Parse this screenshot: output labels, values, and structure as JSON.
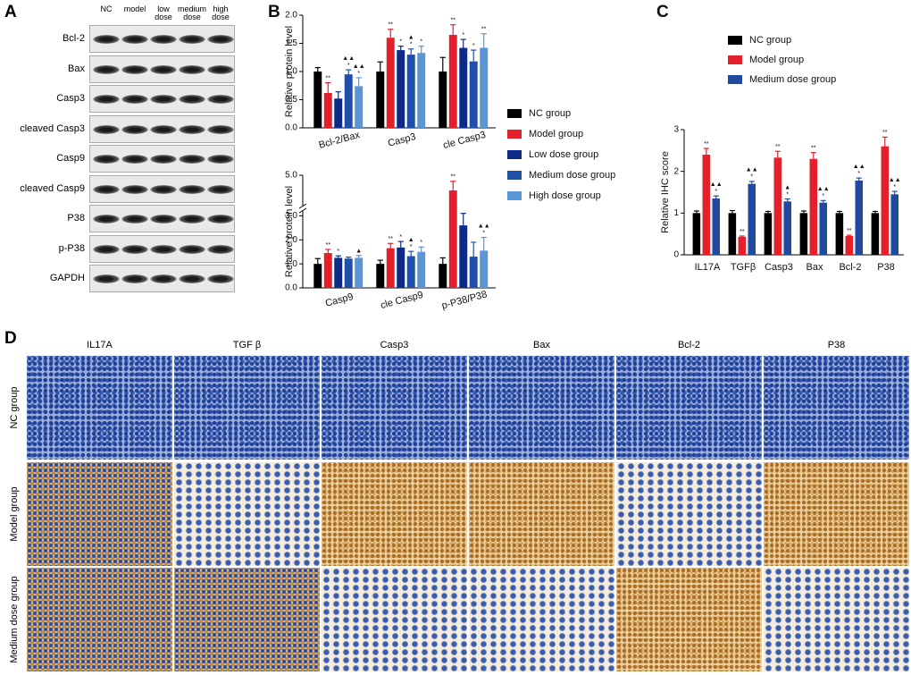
{
  "panel_a": {
    "label": "A",
    "lanes": [
      "NC",
      "model",
      "low dose",
      "medium dose",
      "high dose"
    ],
    "proteins": [
      "Bcl-2",
      "Bax",
      "Casp3",
      "cleaved Casp3",
      "Casp9",
      "cleaved Casp9",
      "P38",
      "p-P38",
      "GAPDH"
    ]
  },
  "chart_data": [
    {
      "type": "bar",
      "panel": "B",
      "ylabel": "Relative protein level",
      "categories": [
        "Bcl-2/Bax",
        "Casp3",
        "cle Casp3"
      ],
      "ylim": [
        0,
        2
      ],
      "yticks": [
        {
          "value": 0,
          "label": "0.0"
        },
        0.5,
        {
          "value": 1,
          "label": "1.0"
        },
        1.5,
        {
          "value": 2,
          "label": "2.0"
        }
      ],
      "series": [
        {
          "name": "NC group",
          "color": "#000000",
          "values": [
            1.0,
            1.0,
            1.0
          ],
          "errors": [
            0.07,
            0.17,
            0.25
          ]
        },
        {
          "name": "Model group",
          "color": "#e3202b",
          "values": [
            0.62,
            1.6,
            1.65
          ],
          "errors": [
            0.18,
            0.15,
            0.18
          ],
          "annotations": [
            [
              "**"
            ],
            [
              "**"
            ],
            [
              "**"
            ]
          ]
        },
        {
          "name": "Low dose group",
          "color": "#0d2a87",
          "values": [
            0.52,
            1.38,
            1.42
          ],
          "errors": [
            0.12,
            0.07,
            0.15
          ],
          "annotations": [
            null,
            [
              "*"
            ],
            [
              "*"
            ]
          ]
        },
        {
          "name": "Medium dose group",
          "color": "#1f4fa8",
          "values": [
            0.95,
            1.3,
            1.18
          ],
          "errors": [
            0.08,
            0.1,
            0.2
          ],
          "annotations": [
            [
              "▲▲",
              "*"
            ],
            [
              "▲",
              "*"
            ],
            [
              "*"
            ]
          ]
        },
        {
          "name": "High dose group",
          "color": "#5a95d6",
          "values": [
            0.74,
            1.33,
            1.42
          ],
          "errors": [
            0.15,
            0.12,
            0.25
          ],
          "annotations": [
            [
              "▲▲",
              "*"
            ],
            [
              "*"
            ],
            [
              "**"
            ]
          ]
        }
      ]
    },
    {
      "type": "bar",
      "ylabel": "Relative protein level",
      "categories": [
        "Casp9",
        "cle Casp9",
        "p-P38/P38"
      ],
      "ylim": [
        0,
        5
      ],
      "ybreak": [
        3.2,
        4
      ],
      "yticks": [
        {
          "value": 0,
          "label": "0.0"
        },
        {
          "value": 1,
          "label": "1.0"
        },
        {
          "value": 2,
          "label": "2.0"
        },
        {
          "value": 3,
          "label": "3.0"
        },
        {
          "value": 5,
          "label": "5.0"
        }
      ],
      "series": [
        {
          "color": "#000000",
          "values": [
            1.0,
            1.0,
            1.0
          ],
          "errors": [
            0.22,
            0.15,
            0.25
          ]
        },
        {
          "color": "#e3202b",
          "values": [
            1.45,
            1.65,
            4.5
          ],
          "errors": [
            0.15,
            0.2,
            0.3
          ],
          "annotations": [
            [
              "**"
            ],
            [
              "**"
            ],
            [
              "**"
            ]
          ]
        },
        {
          "color": "#0d2a87",
          "values": [
            1.25,
            1.68,
            2.6
          ],
          "errors": [
            0.08,
            0.25,
            0.5
          ],
          "annotations": [
            [
              "*"
            ],
            [
              "*"
            ],
            null
          ]
        },
        {
          "color": "#1f4fa8",
          "values": [
            1.22,
            1.32,
            1.3
          ],
          "errors": [
            0.06,
            0.2,
            0.6
          ],
          "annotations": [
            null,
            [
              "▲",
              "*"
            ],
            null
          ]
        },
        {
          "color": "#5a95d6",
          "values": [
            1.25,
            1.5,
            1.55
          ],
          "errors": [
            0.1,
            0.2,
            0.55
          ],
          "annotations": [
            [
              "▲"
            ],
            [
              "*"
            ],
            [
              "▲▲",
              "*"
            ]
          ]
        }
      ]
    },
    {
      "type": "bar",
      "panel": "C",
      "ylabel": "Relative IHC score",
      "categories": [
        "IL17A",
        "TGFβ",
        "Casp3",
        "Bax",
        "Bcl-2",
        "P38"
      ],
      "ylim": [
        0,
        3
      ],
      "yticks": [
        0,
        1,
        2,
        3
      ],
      "series": [
        {
          "name": "NC group",
          "color": "#000000",
          "values": [
            1.0,
            1.0,
            1.0,
            1.0,
            1.0,
            1.0
          ],
          "errors": [
            0.05,
            0.06,
            0.04,
            0.05,
            0.04,
            0.04
          ]
        },
        {
          "name": "Model group",
          "color": "#e3202b",
          "values": [
            2.4,
            0.43,
            2.33,
            2.3,
            0.45,
            2.6
          ],
          "errors": [
            0.15,
            0.02,
            0.15,
            0.15,
            0.02,
            0.22
          ],
          "annotations": [
            [
              "**"
            ],
            [
              "**"
            ],
            [
              "**"
            ],
            [
              "**"
            ],
            [
              "**"
            ],
            [
              "**"
            ]
          ]
        },
        {
          "name": "Medium dose group",
          "color": "#1f4aa0",
          "values": [
            1.35,
            1.7,
            1.28,
            1.25,
            1.78,
            1.45
          ],
          "errors": [
            0.06,
            0.06,
            0.06,
            0.05,
            0.06,
            0.07
          ],
          "annotations": [
            [
              "▲▲",
              "*"
            ],
            [
              "▲▲",
              "*"
            ],
            [
              "▲",
              "*"
            ],
            [
              "▲▲",
              "*"
            ],
            [
              "▲▲",
              "*"
            ],
            [
              "▲▲",
              "*"
            ]
          ]
        }
      ]
    }
  ],
  "panel_d": {
    "label": "D",
    "columns": [
      "IL17A",
      "TGF β",
      "Casp3",
      "Bax",
      "Bcl-2",
      "P38"
    ],
    "rows": [
      "NC group",
      "Model group",
      "Medium dose group"
    ]
  }
}
